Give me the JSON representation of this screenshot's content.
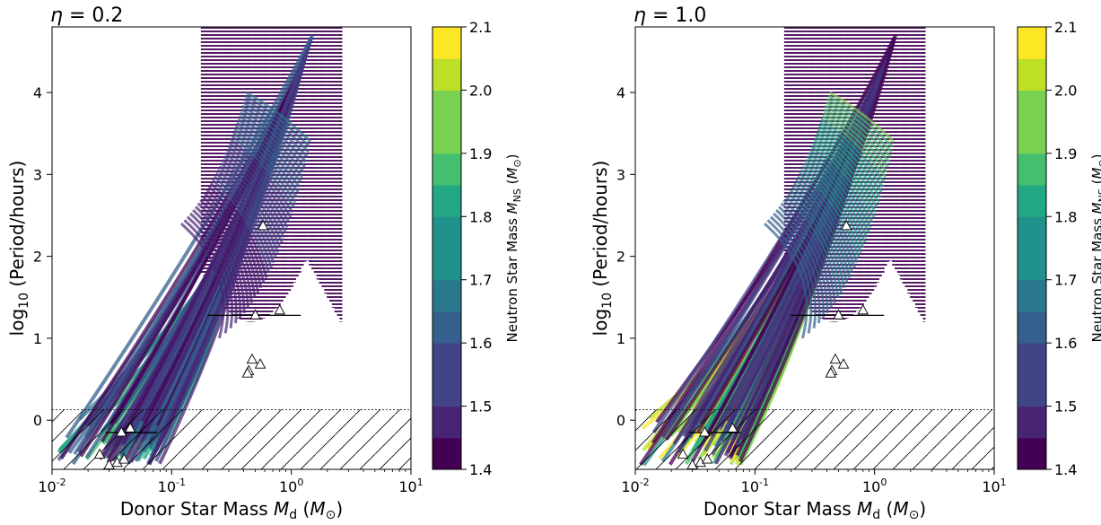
{
  "chart_data": [
    {
      "type": "scatter",
      "title": "η = 0.2",
      "xlabel": "Donor Star Mass M_d (M_⊙)",
      "ylabel": "log10 (Period/hours)",
      "x_scale": "log",
      "xlim": [
        0.01,
        10
      ],
      "ylim": [
        -0.6,
        4.8
      ],
      "x_ticks": [
        "10^-2",
        "10^-1",
        "10^0",
        "10^1"
      ],
      "y_ticks": [
        "0",
        "1",
        "2",
        "3",
        "4"
      ],
      "colorbar": {
        "label": "Neutron Star Mass M_NS (M_⊙)",
        "range": [
          1.4,
          2.1
        ],
        "ticks": [
          "1.4",
          "1.5",
          "1.6",
          "1.7",
          "1.8",
          "1.9",
          "2.0",
          "2.1"
        ],
        "colormap": [
          "#440154",
          "#482475",
          "#414487",
          "#355f8d",
          "#2a788e",
          "#21918c",
          "#22a884",
          "#44bf70",
          "#7ad151",
          "#bddf26",
          "#fde725"
        ]
      },
      "forbidden_region": {
        "x": [
          0.01,
          10
        ],
        "y_max": 0.13,
        "hatched": true
      },
      "observed_systems": [
        {
          "x": 0.58,
          "y": 2.37
        },
        {
          "x": 0.5,
          "y": 1.28,
          "xerr_low": 0.3,
          "xerr_high": 0.7
        },
        {
          "x": 0.8,
          "y": 1.34
        },
        {
          "x": 0.47,
          "y": 0.74
        },
        {
          "x": 0.55,
          "y": 0.68
        },
        {
          "x": 0.44,
          "y": 0.6
        },
        {
          "x": 0.43,
          "y": 0.57
        },
        {
          "x": 0.038,
          "y": -0.15,
          "xerr_low": 0.01,
          "xerr_high": 0.038
        },
        {
          "x": 0.045,
          "y": -0.1
        },
        {
          "x": 0.025,
          "y": -0.42
        },
        {
          "x": 0.03,
          "y": -0.55
        },
        {
          "x": 0.035,
          "y": -0.52
        },
        {
          "x": 0.04,
          "y": -0.48
        }
      ]
    },
    {
      "type": "scatter",
      "title": "η = 1.0",
      "xlabel": "Donor Star Mass M_d (M_⊙)",
      "ylabel": "log10 (Period/hours)",
      "x_scale": "log",
      "xlim": [
        0.01,
        10
      ],
      "ylim": [
        -0.6,
        4.8
      ],
      "x_ticks": [
        "10^-2",
        "10^-1",
        "10^0",
        "10^1"
      ],
      "y_ticks": [
        "0",
        "1",
        "2",
        "3",
        "4"
      ],
      "colorbar": {
        "label": "Neutron Star Mass M_NS (M_⊙)",
        "range": [
          1.4,
          2.1
        ],
        "ticks": [
          "1.4",
          "1.5",
          "1.6",
          "1.7",
          "1.8",
          "1.9",
          "2.0",
          "2.1"
        ],
        "colormap": [
          "#440154",
          "#482475",
          "#414487",
          "#355f8d",
          "#2a788e",
          "#21918c",
          "#22a884",
          "#44bf70",
          "#7ad151",
          "#bddf26",
          "#fde725"
        ]
      },
      "forbidden_region": {
        "x": [
          0.01,
          10
        ],
        "y_max": 0.13,
        "hatched": true
      },
      "observed_systems": [
        {
          "x": 0.58,
          "y": 2.37
        },
        {
          "x": 0.5,
          "y": 1.28,
          "xerr_low": 0.3,
          "xerr_high": 0.7
        },
        {
          "x": 0.8,
          "y": 1.34
        },
        {
          "x": 0.47,
          "y": 0.74
        },
        {
          "x": 0.55,
          "y": 0.68
        },
        {
          "x": 0.44,
          "y": 0.6
        },
        {
          "x": 0.43,
          "y": 0.57
        },
        {
          "x": 0.038,
          "y": -0.15,
          "xerr_low": 0.01,
          "xerr_high": 0.038
        },
        {
          "x": 0.065,
          "y": -0.1
        },
        {
          "x": 0.025,
          "y": -0.42
        },
        {
          "x": 0.03,
          "y": -0.55
        },
        {
          "x": 0.035,
          "y": -0.52
        },
        {
          "x": 0.04,
          "y": -0.48
        }
      ]
    }
  ]
}
